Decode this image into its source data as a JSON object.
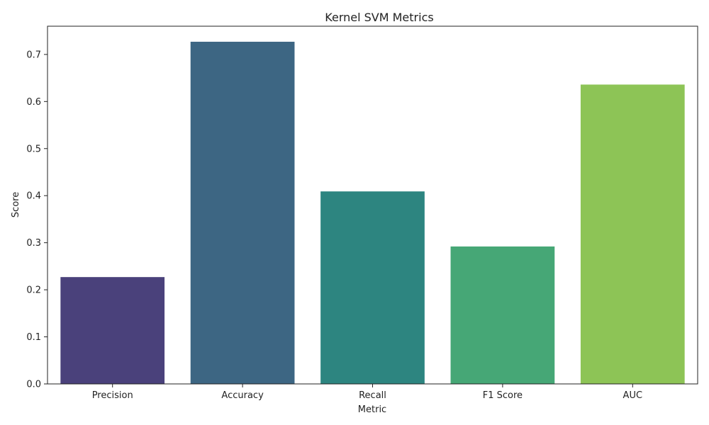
{
  "chart_data": {
    "type": "bar",
    "title": "Kernel SVM Metrics",
    "xlabel": "Metric",
    "ylabel": "Score",
    "categories": [
      "Precision",
      "Accuracy",
      "Recall",
      "F1 Score",
      "AUC"
    ],
    "values": [
      0.227,
      0.727,
      0.409,
      0.292,
      0.636
    ],
    "colors": [
      "#4a417b",
      "#3d6683",
      "#2d8580",
      "#46a776",
      "#8dc456"
    ],
    "ylim": [
      0,
      0.76
    ],
    "yticks": [
      0.0,
      0.1,
      0.2,
      0.3,
      0.4,
      0.5,
      0.6,
      0.7
    ],
    "ytick_labels": [
      "0.0",
      "0.1",
      "0.2",
      "0.3",
      "0.4",
      "0.5",
      "0.6",
      "0.7"
    ],
    "grid": false,
    "legend": "none"
  }
}
